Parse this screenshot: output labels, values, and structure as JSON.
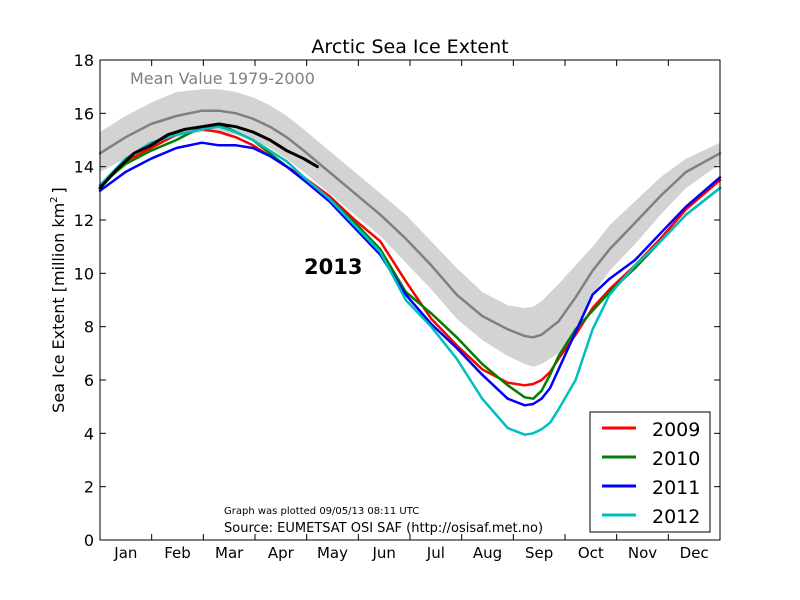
{
  "chart_data": {
    "type": "line",
    "title": "Arctic Sea Ice Extent",
    "ylabel": "Sea Ice Extent [million km",
    "ylabel_sup": "2",
    "ylabel_end": "]",
    "xlabel": "",
    "ylim": [
      0,
      18
    ],
    "yticks": [
      0,
      2,
      4,
      6,
      8,
      10,
      12,
      14,
      16,
      18
    ],
    "xlim": [
      0,
      365
    ],
    "months": [
      "Jan",
      "Feb",
      "Mar",
      "Apr",
      "May",
      "Jun",
      "Jul",
      "Aug",
      "Sep",
      "Oct",
      "Nov",
      "Dec"
    ],
    "grid": false,
    "legend_position": "lower-right",
    "mean_label": "Mean Value 1979-2000",
    "year_label": "2013",
    "footnote": "Graph was plotted 09/05/13 08:11 UTC",
    "source": "Source: EUMETSAT OSI SAF (http://osisaf.met.no)",
    "colors": {
      "mean": "#808080",
      "band": "#d3d3d3",
      "s2009": "#ff0000",
      "s2010": "#008000",
      "s2011": "#0000ff",
      "s2012": "#00bfbf",
      "s2013": "#000000"
    },
    "series": [
      {
        "name": "Mean Value 1979-2000",
        "color": "#808080",
        "x": [
          0,
          15,
          30,
          45,
          60,
          70,
          80,
          90,
          100,
          110,
          120,
          135,
          150,
          165,
          180,
          195,
          210,
          225,
          240,
          250,
          255,
          260,
          270,
          280,
          290,
          300,
          315,
          330,
          345,
          365
        ],
        "y": [
          14.5,
          15.1,
          15.6,
          15.9,
          16.1,
          16.1,
          16.0,
          15.8,
          15.5,
          15.1,
          14.6,
          13.8,
          13.0,
          12.2,
          11.3,
          10.3,
          9.2,
          8.4,
          7.9,
          7.65,
          7.6,
          7.7,
          8.2,
          9.1,
          10.1,
          10.9,
          11.9,
          12.9,
          13.8,
          14.5
        ]
      },
      {
        "name": "2009",
        "color": "#ff0000",
        "x": [
          0,
          15,
          30,
          45,
          60,
          70,
          80,
          90,
          100,
          110,
          120,
          135,
          150,
          165,
          180,
          195,
          210,
          225,
          240,
          250,
          255,
          260,
          265,
          270,
          280,
          290,
          300,
          315,
          330,
          345,
          365
        ],
        "y": [
          13.2,
          14.2,
          14.7,
          15.2,
          15.4,
          15.3,
          15.1,
          14.8,
          14.4,
          14.0,
          13.6,
          12.9,
          12.0,
          11.2,
          9.7,
          8.3,
          7.3,
          6.4,
          5.9,
          5.8,
          5.85,
          6.0,
          6.3,
          6.8,
          7.7,
          8.7,
          9.4,
          10.3,
          11.3,
          12.4,
          13.5
        ]
      },
      {
        "name": "2010",
        "color": "#008000",
        "x": [
          0,
          15,
          30,
          45,
          60,
          70,
          80,
          90,
          100,
          110,
          120,
          135,
          150,
          165,
          180,
          195,
          210,
          225,
          240,
          250,
          255,
          260,
          265,
          270,
          280,
          290,
          300,
          315,
          330,
          345,
          365
        ],
        "y": [
          13.3,
          14.1,
          14.6,
          15.0,
          15.5,
          15.6,
          15.3,
          15.0,
          14.5,
          14.0,
          13.5,
          12.8,
          11.9,
          10.9,
          9.3,
          8.5,
          7.6,
          6.6,
          5.8,
          5.35,
          5.3,
          5.6,
          6.2,
          6.9,
          7.9,
          8.6,
          9.3,
          10.2,
          11.2,
          12.2,
          13.2
        ]
      },
      {
        "name": "2011",
        "color": "#0000ff",
        "x": [
          0,
          15,
          30,
          45,
          60,
          70,
          80,
          90,
          100,
          110,
          120,
          135,
          150,
          165,
          180,
          195,
          210,
          225,
          240,
          250,
          255,
          260,
          265,
          270,
          280,
          290,
          300,
          315,
          330,
          345,
          365
        ],
        "y": [
          13.1,
          13.8,
          14.3,
          14.7,
          14.9,
          14.8,
          14.8,
          14.7,
          14.4,
          14.0,
          13.5,
          12.7,
          11.7,
          10.7,
          9.2,
          8.1,
          7.2,
          6.2,
          5.3,
          5.05,
          5.1,
          5.3,
          5.7,
          6.4,
          7.8,
          9.2,
          9.8,
          10.5,
          11.5,
          12.5,
          13.6
        ]
      },
      {
        "name": "2012",
        "color": "#00bfbf",
        "x": [
          0,
          15,
          30,
          45,
          60,
          70,
          80,
          90,
          100,
          110,
          120,
          135,
          150,
          165,
          180,
          195,
          210,
          225,
          240,
          250,
          255,
          260,
          265,
          270,
          280,
          290,
          300,
          315,
          330,
          345,
          365
        ],
        "y": [
          13.3,
          14.3,
          14.9,
          15.2,
          15.4,
          15.5,
          15.3,
          15.0,
          14.6,
          14.2,
          13.6,
          12.8,
          11.8,
          10.8,
          9.0,
          8.0,
          6.8,
          5.3,
          4.2,
          3.95,
          4.0,
          4.15,
          4.4,
          4.9,
          6.0,
          7.9,
          9.2,
          10.3,
          11.2,
          12.2,
          13.2
        ]
      },
      {
        "name": "2013",
        "color": "#000000",
        "x": [
          0,
          10,
          20,
          30,
          40,
          50,
          60,
          70,
          80,
          90,
          100,
          110,
          120,
          128
        ],
        "y": [
          13.2,
          13.9,
          14.5,
          14.8,
          15.2,
          15.4,
          15.5,
          15.6,
          15.5,
          15.3,
          15.0,
          14.6,
          14.3,
          14.0
        ]
      }
    ],
    "band": {
      "x": [
        0,
        15,
        30,
        45,
        60,
        70,
        80,
        90,
        100,
        110,
        120,
        135,
        150,
        165,
        180,
        195,
        210,
        225,
        240,
        250,
        255,
        260,
        270,
        280,
        290,
        300,
        315,
        330,
        345,
        365
      ],
      "upper": [
        15.3,
        15.9,
        16.4,
        16.8,
        16.9,
        16.9,
        16.8,
        16.6,
        16.3,
        15.9,
        15.4,
        14.6,
        13.8,
        13.0,
        12.2,
        11.2,
        10.2,
        9.3,
        8.8,
        8.7,
        8.75,
        8.95,
        9.6,
        10.3,
        11.0,
        11.8,
        12.7,
        13.6,
        14.3,
        14.9
      ],
      "lower": [
        13.8,
        14.3,
        14.8,
        15.1,
        15.3,
        15.3,
        15.2,
        15.0,
        14.7,
        14.3,
        13.8,
        13.0,
        12.2,
        11.4,
        10.4,
        9.4,
        8.3,
        7.5,
        6.9,
        6.6,
        6.5,
        6.6,
        7.0,
        7.9,
        9.2,
        10.1,
        11.1,
        12.2,
        13.2,
        14.1
      ]
    }
  }
}
